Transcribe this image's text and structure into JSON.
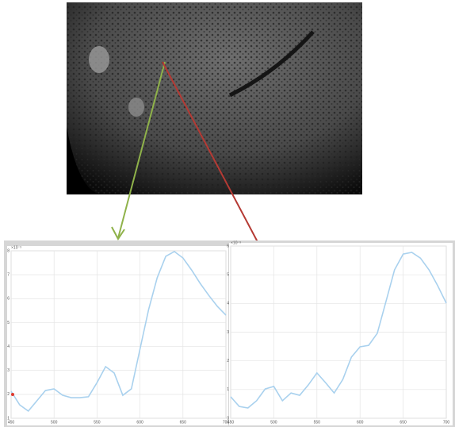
{
  "chart_data": [
    {
      "type": "line",
      "exponent_label": "×10⁻³",
      "x": [
        450,
        460,
        470,
        480,
        490,
        500,
        510,
        520,
        530,
        540,
        550,
        560,
        570,
        580,
        590,
        600,
        610,
        620,
        630,
        640,
        650,
        660,
        670,
        680,
        690,
        700
      ],
      "values": [
        2.13,
        1.56,
        1.3,
        1.73,
        2.16,
        2.23,
        1.96,
        1.86,
        1.86,
        1.9,
        2.49,
        3.16,
        2.89,
        1.96,
        2.23,
        3.89,
        5.54,
        6.87,
        7.77,
        7.97,
        7.7,
        7.2,
        6.64,
        6.14,
        5.68,
        5.31
      ],
      "color": "#a9d1ee",
      "xlim": [
        450,
        700
      ],
      "xticks": [
        450,
        500,
        550,
        600,
        650,
        700
      ],
      "ylim": [
        1,
        8
      ],
      "yticks": [
        1,
        2,
        3,
        4,
        5,
        6,
        7,
        8
      ],
      "grid": true
    },
    {
      "type": "line",
      "exponent_label": "×10⁻³",
      "x": [
        450,
        460,
        470,
        480,
        490,
        500,
        510,
        520,
        530,
        540,
        550,
        560,
        570,
        580,
        590,
        600,
        610,
        620,
        630,
        640,
        650,
        660,
        670,
        680,
        690,
        700
      ],
      "values": [
        0.75,
        0.41,
        0.36,
        0.61,
        1.02,
        1.11,
        0.61,
        0.88,
        0.8,
        1.16,
        1.58,
        1.24,
        0.88,
        1.35,
        2.13,
        2.49,
        2.54,
        2.96,
        4.06,
        5.17,
        5.72,
        5.78,
        5.58,
        5.17,
        4.62,
        4.01
      ],
      "color": "#a9d1ee",
      "xlim": [
        450,
        700
      ],
      "xticks": [
        450,
        500,
        550,
        600,
        650,
        700
      ],
      "ylim": [
        0,
        6
      ],
      "yticks": [
        0,
        1,
        2,
        3,
        4,
        5,
        6
      ],
      "grid": true
    }
  ]
}
